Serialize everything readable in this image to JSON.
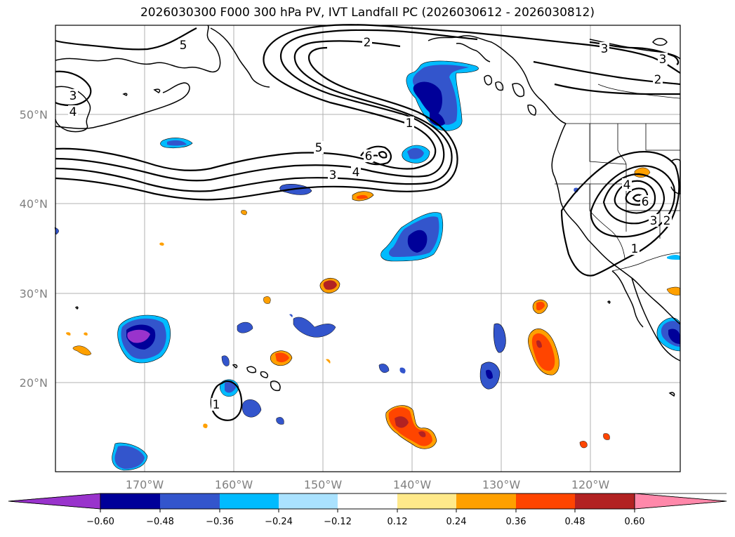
{
  "title": "2026030300 F000 300 hPa PV, IVT Landfall PC (2026030612 - 2026030812)",
  "map": {
    "lon_range": [
      -180,
      -110
    ],
    "lat_range": [
      10,
      60
    ],
    "lon_ticks": [
      "170°W",
      "160°W",
      "150°W",
      "140°W",
      "130°W",
      "120°W"
    ],
    "lat_ticks": [
      "50°N",
      "40°N",
      "30°N",
      "20°N"
    ]
  },
  "contour_labels": [
    "5",
    "2",
    "3",
    "3",
    "2",
    "3",
    "4",
    "1",
    "5",
    "6",
    "4",
    "3",
    "4",
    "6",
    "3",
    "2",
    "1",
    "1"
  ],
  "colorbar": {
    "ticks": [
      "−0.60",
      "−0.48",
      "−0.36",
      "−0.24",
      "−0.12",
      "0.12",
      "0.24",
      "0.36",
      "0.48",
      "0.60"
    ],
    "colors": [
      "#9933cc",
      "#000099",
      "#3355cc",
      "#00bbff",
      "#aae2ff",
      "#ffffff",
      "#ffe98a",
      "#ffa000",
      "#ff4500",
      "#b22222",
      "#ff88aa"
    ]
  },
  "colors": {
    "neg_dark": "#000099",
    "neg_mid": "#3355cc",
    "neg_light": "#00bbff",
    "neg_purple": "#9933cc",
    "pos_light": "#ffe98a",
    "pos_orange": "#ffa000",
    "pos_red": "#ff4500",
    "pos_dark": "#b22222"
  }
}
